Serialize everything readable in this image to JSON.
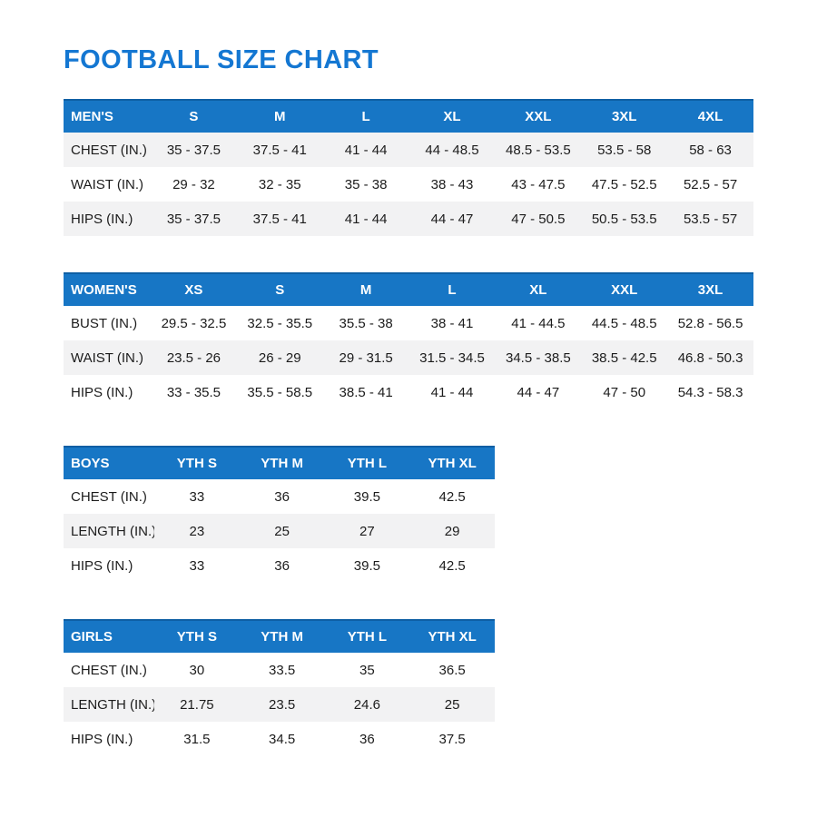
{
  "page": {
    "title": "FOOTBALL SIZE CHART"
  },
  "colors": {
    "header_bg": "#1776C5",
    "header_top_border": "#0E5FA4",
    "title_blue": "#1477D2",
    "row_shade": "#F2F2F3",
    "text": "#1C1C1C"
  },
  "tables": [
    {
      "id": "mens",
      "wide": true,
      "shaded_rows": [
        0,
        2
      ],
      "header": [
        "MEN'S",
        "S",
        "M",
        "L",
        "XL",
        "XXL",
        "3XL",
        "4XL"
      ],
      "rows": [
        {
          "label": "CHEST (IN.)",
          "values": [
            "35 - 37.5",
            "37.5 - 41",
            "41 - 44",
            "44 - 48.5",
            "48.5 - 53.5",
            "53.5 - 58",
            "58 - 63"
          ]
        },
        {
          "label": "WAIST (IN.)",
          "values": [
            "29 - 32",
            "32 - 35",
            "35 - 38",
            "38 - 43",
            "43 - 47.5",
            "47.5 - 52.5",
            "52.5 - 57"
          ]
        },
        {
          "label": "HIPS (IN.)",
          "values": [
            "35 - 37.5",
            "37.5 - 41",
            "41 - 44",
            "44 - 47",
            "47 - 50.5",
            "50.5 - 53.5",
            "53.5 - 57"
          ]
        }
      ]
    },
    {
      "id": "womens",
      "wide": true,
      "shaded_rows": [
        1
      ],
      "header": [
        "WOMEN'S",
        "XS",
        "S",
        "M",
        "L",
        "XL",
        "XXL",
        "3XL"
      ],
      "rows": [
        {
          "label": "BUST (IN.)",
          "values": [
            "29.5 - 32.5",
            "32.5 - 35.5",
            "35.5 - 38",
            "38 - 41",
            "41 - 44.5",
            "44.5 - 48.5",
            "52.8 - 56.5"
          ]
        },
        {
          "label": "WAIST (IN.)",
          "values": [
            "23.5 - 26",
            "26 - 29",
            "29 - 31.5",
            "31.5 - 34.5",
            "34.5 - 38.5",
            "38.5 - 42.5",
            "46.8 - 50.3"
          ]
        },
        {
          "label": "HIPS (IN.)",
          "values": [
            "33 - 35.5",
            "35.5 - 58.5",
            "38.5 - 41",
            "41 - 44",
            "44 - 47",
            "47 - 50",
            "54.3 - 58.3"
          ]
        }
      ]
    },
    {
      "id": "boys",
      "wide": false,
      "shaded_rows": [
        1
      ],
      "header": [
        "BOYS",
        "YTH S",
        "YTH M",
        "YTH L",
        "YTH XL"
      ],
      "rows": [
        {
          "label": "CHEST (IN.)",
          "values": [
            "33",
            "36",
            "39.5",
            "42.5"
          ]
        },
        {
          "label": "LENGTH (IN.)",
          "values": [
            "23",
            "25",
            "27",
            "29"
          ]
        },
        {
          "label": "HIPS (IN.)",
          "values": [
            "33",
            "36",
            "39.5",
            "42.5"
          ]
        }
      ]
    },
    {
      "id": "girls",
      "wide": false,
      "shaded_rows": [
        1
      ],
      "header": [
        "GIRLS",
        "YTH S",
        "YTH M",
        "YTH L",
        "YTH XL"
      ],
      "rows": [
        {
          "label": "CHEST (IN.)",
          "values": [
            "30",
            "33.5",
            "35",
            "36.5"
          ]
        },
        {
          "label": "LENGTH (IN.)",
          "values": [
            "21.75",
            "23.5",
            "24.6",
            "25"
          ]
        },
        {
          "label": "HIPS (IN.)",
          "values": [
            "31.5",
            "34.5",
            "36",
            "37.5"
          ]
        }
      ]
    }
  ]
}
